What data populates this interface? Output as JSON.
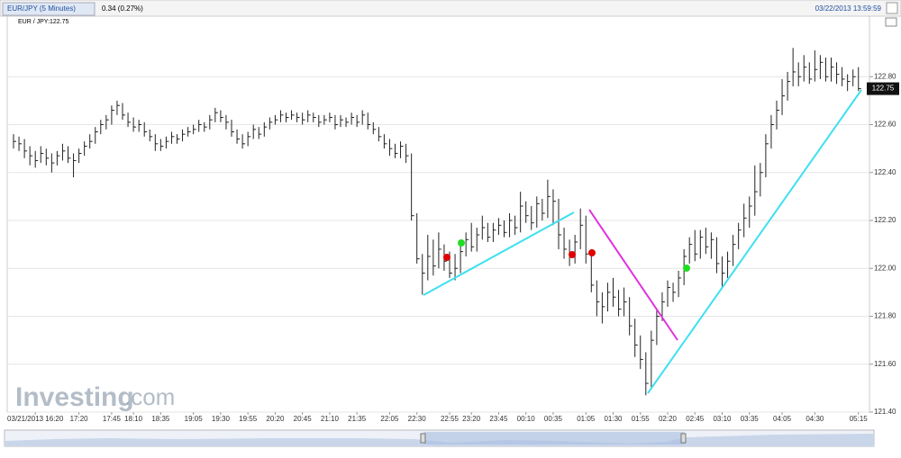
{
  "header": {
    "tab": "EUR/JPY (5 Minutes)",
    "change": "0.34 (0.27%)",
    "timestamp": "03/22/2013 13:59:59",
    "brand_name": "Investing",
    "brand_suffix": ".com"
  },
  "chart_data": {
    "type": "ohlc",
    "title": "EUR / JPY:122.75",
    "color": "#222222",
    "last_price": 122.75,
    "grid": true,
    "ylim": [
      121.4,
      123.0
    ],
    "yticks": [
      {
        "value": 121.4,
        "label": "121.40"
      },
      {
        "value": 121.6,
        "label": "121.60"
      },
      {
        "value": 121.8,
        "label": "121.80"
      },
      {
        "value": 122.0,
        "label": "122.00"
      },
      {
        "value": 122.2,
        "label": "122.20"
      },
      {
        "value": 122.4,
        "label": "122.40"
      },
      {
        "value": 122.6,
        "label": "122.60"
      },
      {
        "value": 122.8,
        "label": "122.80"
      }
    ],
    "categories": [
      null,
      null,
      null,
      null,
      "03/21/2013 16:20",
      null,
      null,
      null,
      null,
      null,
      null,
      null,
      "17:20",
      null,
      null,
      null,
      null,
      null,
      "17:45",
      null,
      null,
      null,
      "18:10",
      null,
      null,
      null,
      null,
      "18:35",
      null,
      null,
      null,
      null,
      null,
      "19:05",
      null,
      null,
      null,
      null,
      "19:30",
      null,
      null,
      null,
      null,
      "19:55",
      null,
      null,
      null,
      null,
      "20:20",
      null,
      null,
      null,
      null,
      "20:45",
      null,
      null,
      null,
      null,
      "21:10",
      null,
      null,
      null,
      null,
      "21:35",
      null,
      null,
      null,
      null,
      null,
      "22:05",
      null,
      null,
      null,
      null,
      "22:30",
      null,
      null,
      null,
      null,
      null,
      "22:55",
      null,
      null,
      null,
      "23:20",
      null,
      null,
      null,
      null,
      "23:45",
      null,
      null,
      null,
      null,
      "00:10",
      null,
      null,
      null,
      null,
      "00:35",
      null,
      null,
      null,
      null,
      null,
      "01:05",
      null,
      null,
      null,
      null,
      "01:30",
      null,
      null,
      null,
      null,
      "01:55",
      null,
      null,
      null,
      null,
      "02:20",
      null,
      null,
      null,
      null,
      "02:45",
      null,
      null,
      null,
      null,
      "03:10",
      null,
      null,
      null,
      null,
      "03:35",
      null,
      null,
      null,
      null,
      null,
      "04:05",
      null,
      null,
      null,
      null,
      null,
      "04:30",
      null,
      null,
      null,
      null,
      null,
      null,
      null,
      "05:15"
    ],
    "high": [
      122.56,
      122.55,
      122.54,
      122.51,
      122.49,
      122.51,
      122.5,
      122.48,
      122.49,
      122.52,
      122.51,
      122.48,
      122.5,
      122.53,
      122.56,
      122.59,
      122.62,
      122.64,
      122.68,
      122.7,
      122.69,
      122.65,
      122.63,
      122.62,
      122.61,
      122.58,
      122.56,
      122.54,
      122.55,
      122.57,
      122.56,
      122.58,
      122.59,
      122.6,
      122.62,
      122.61,
      122.64,
      122.67,
      122.66,
      122.64,
      122.62,
      122.58,
      122.56,
      122.57,
      122.6,
      122.59,
      122.61,
      122.63,
      122.64,
      122.66,
      122.65,
      122.66,
      122.65,
      122.65,
      122.66,
      122.65,
      122.64,
      122.64,
      122.65,
      122.64,
      122.64,
      122.63,
      122.65,
      122.64,
      122.66,
      122.65,
      122.61,
      122.59,
      122.56,
      122.54,
      122.52,
      122.53,
      122.52,
      122.48,
      122.23,
      122.06,
      122.14,
      122.12,
      122.15,
      122.1,
      122.07,
      122.06,
      122.1,
      122.15,
      122.19,
      122.17,
      122.22,
      122.19,
      122.19,
      122.21,
      122.2,
      122.23,
      122.22,
      122.32,
      122.28,
      122.26,
      122.3,
      122.29,
      122.37,
      122.33,
      122.29,
      122.17,
      122.12,
      122.14,
      122.25,
      122.22,
      122.08,
      121.95,
      121.9,
      121.94,
      121.96,
      121.91,
      121.92,
      121.88,
      121.79,
      121.72,
      121.65,
      121.74,
      121.83,
      121.9,
      121.95,
      121.94,
      121.99,
      122.08,
      122.13,
      122.16,
      122.16,
      122.17,
      122.15,
      122.13,
      122.05,
      122.07,
      122.14,
      122.19,
      122.27,
      122.3,
      122.43,
      122.44,
      122.56,
      122.64,
      122.7,
      122.79,
      122.82,
      122.92,
      122.86,
      122.89,
      122.86,
      122.91,
      122.89,
      122.88,
      122.88,
      122.86,
      122.84,
      122.81,
      122.83,
      122.84
    ],
    "low": [
      122.5,
      122.49,
      122.46,
      122.43,
      122.42,
      122.44,
      122.43,
      122.4,
      122.43,
      122.45,
      122.44,
      122.38,
      122.44,
      122.47,
      122.5,
      122.52,
      122.56,
      122.58,
      122.6,
      122.64,
      122.62,
      122.59,
      122.57,
      122.57,
      122.55,
      122.53,
      122.49,
      122.49,
      122.5,
      122.52,
      122.52,
      122.53,
      122.55,
      122.56,
      122.57,
      122.57,
      122.58,
      122.61,
      122.61,
      122.58,
      122.55,
      122.52,
      122.5,
      122.51,
      122.54,
      122.54,
      122.55,
      122.58,
      122.6,
      122.61,
      122.61,
      122.62,
      122.61,
      122.6,
      122.61,
      122.61,
      122.59,
      122.6,
      122.61,
      122.58,
      122.59,
      122.59,
      122.6,
      122.59,
      122.6,
      122.58,
      122.56,
      122.53,
      122.5,
      122.47,
      122.46,
      122.46,
      122.44,
      122.2,
      122.02,
      121.89,
      121.95,
      121.97,
      122.0,
      121.99,
      121.96,
      121.95,
      121.98,
      122.05,
      122.07,
      122.07,
      122.12,
      122.11,
      122.11,
      122.14,
      122.13,
      122.13,
      122.14,
      122.15,
      122.19,
      122.16,
      122.17,
      122.2,
      122.21,
      122.18,
      122.08,
      122.04,
      122.01,
      122.02,
      122.08,
      122.02,
      121.9,
      121.8,
      121.77,
      121.82,
      121.84,
      121.8,
      121.8,
      121.72,
      121.63,
      121.58,
      121.47,
      121.5,
      121.68,
      121.78,
      121.84,
      121.86,
      121.88,
      121.93,
      122.02,
      122.03,
      122.04,
      122.06,
      122.04,
      121.98,
      121.92,
      121.96,
      122.01,
      122.08,
      122.13,
      122.17,
      122.22,
      122.3,
      122.38,
      122.5,
      122.58,
      122.64,
      122.7,
      122.76,
      122.76,
      122.78,
      122.77,
      122.78,
      122.79,
      122.78,
      122.78,
      122.77,
      122.76,
      122.74,
      122.76,
      122.74
    ],
    "close": [
      122.53,
      122.52,
      122.49,
      122.47,
      122.45,
      122.48,
      122.46,
      122.44,
      122.47,
      122.49,
      122.46,
      122.45,
      122.48,
      122.51,
      122.53,
      122.57,
      122.6,
      122.62,
      122.66,
      122.68,
      122.64,
      122.61,
      122.59,
      122.6,
      122.57,
      122.55,
      122.52,
      122.51,
      122.53,
      122.55,
      122.54,
      122.56,
      122.57,
      122.58,
      122.6,
      122.59,
      122.62,
      122.65,
      122.63,
      122.61,
      122.57,
      122.54,
      122.52,
      122.55,
      122.58,
      122.56,
      122.59,
      122.61,
      122.62,
      122.64,
      122.63,
      122.64,
      122.63,
      122.62,
      122.64,
      122.63,
      122.61,
      122.62,
      122.63,
      122.6,
      122.62,
      122.61,
      122.63,
      122.61,
      122.64,
      122.6,
      122.58,
      122.55,
      122.52,
      122.5,
      122.48,
      122.51,
      122.47,
      122.22,
      122.04,
      121.98,
      122.05,
      122.01,
      122.08,
      122.03,
      121.98,
      122.0,
      122.07,
      122.12,
      122.09,
      122.14,
      122.17,
      122.13,
      122.16,
      122.18,
      122.15,
      122.2,
      122.17,
      122.26,
      122.22,
      122.19,
      122.27,
      122.23,
      122.3,
      122.28,
      122.14,
      122.08,
      122.05,
      122.11,
      122.18,
      122.06,
      121.93,
      121.86,
      121.84,
      121.9,
      121.88,
      121.83,
      121.86,
      121.76,
      121.68,
      121.62,
      121.52,
      121.7,
      121.8,
      121.86,
      121.92,
      121.9,
      121.96,
      122.05,
      122.1,
      122.06,
      122.13,
      122.09,
      122.12,
      122.02,
      121.98,
      122.03,
      122.1,
      122.16,
      122.21,
      122.26,
      122.32,
      122.4,
      122.52,
      122.6,
      122.66,
      122.72,
      122.78,
      122.82,
      122.8,
      122.84,
      122.79,
      122.83,
      122.86,
      122.8,
      122.84,
      122.81,
      122.79,
      122.78,
      122.8,
      122.75
    ]
  }
}
